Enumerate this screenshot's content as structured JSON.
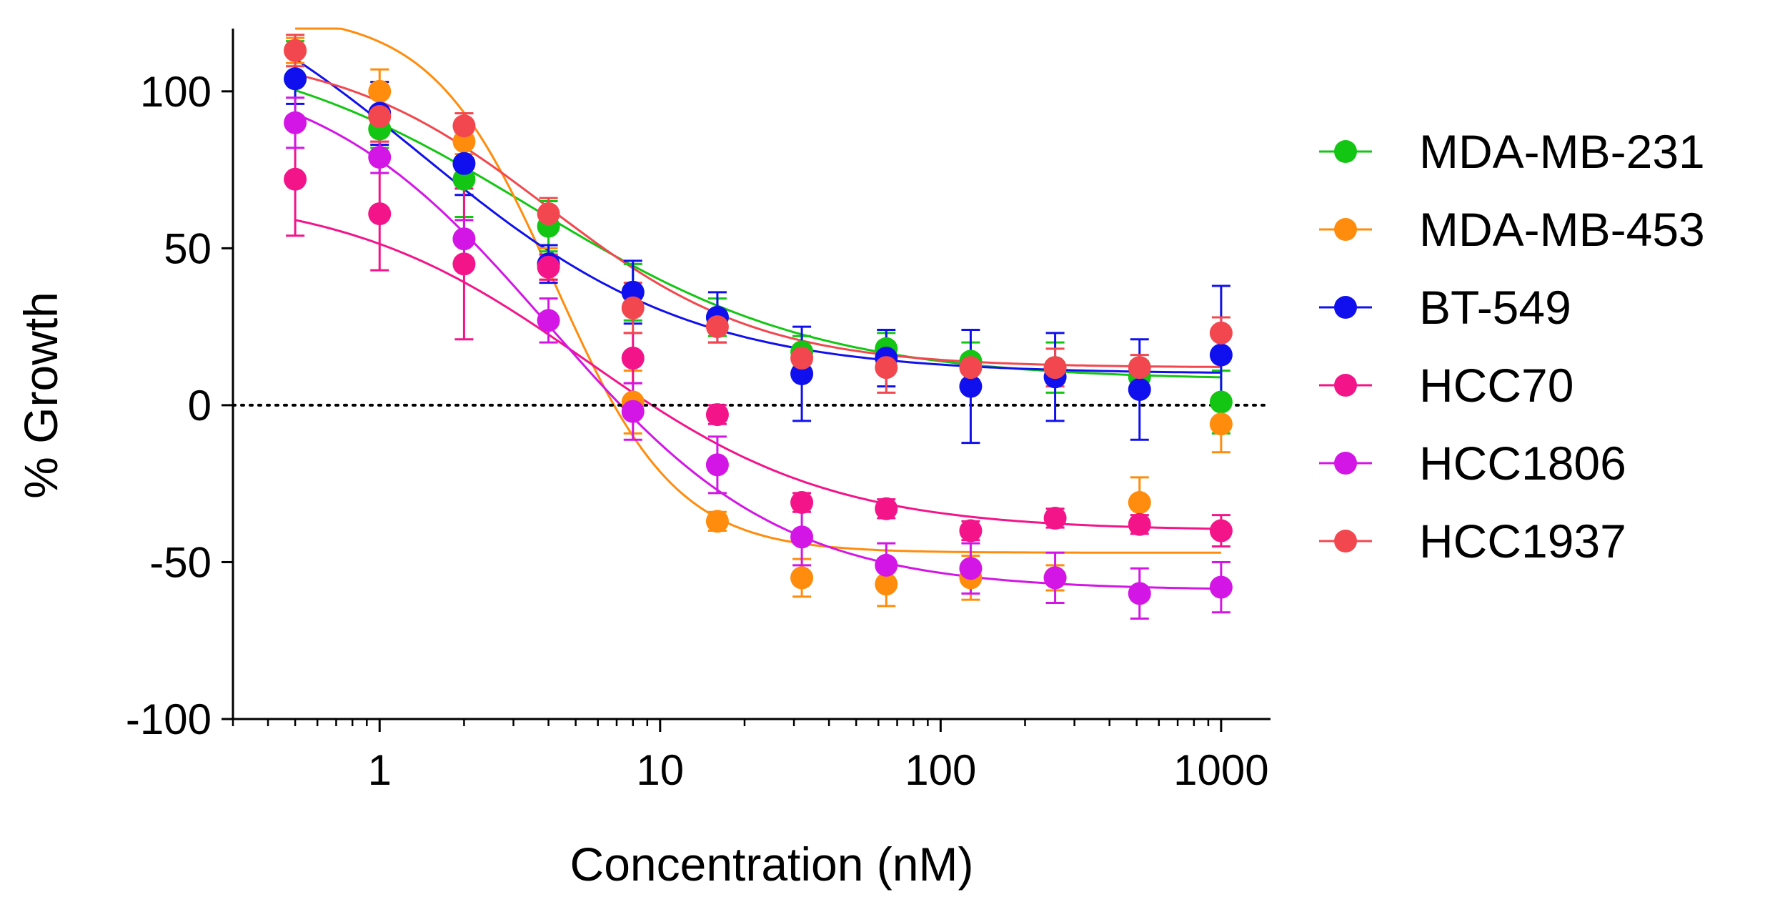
{
  "chart_data": {
    "type": "scatter",
    "title": "",
    "xlabel": "Concentration (nM)",
    "ylabel": "% Growth",
    "xscale": "log",
    "xlim": [
      0.3,
      1500
    ],
    "ylim": [
      -100,
      120
    ],
    "x_ticks": [
      1,
      10,
      100,
      1000
    ],
    "x_tick_labels": [
      "1",
      "10",
      "100",
      "1000"
    ],
    "y_ticks": [
      100,
      50,
      0,
      -50,
      -100
    ],
    "y_tick_labels": [
      "100",
      "50",
      "0",
      "-50",
      "-100"
    ],
    "reference_line": {
      "y": 0,
      "style": "dotted"
    },
    "legend_position": "right",
    "x": [
      0.5,
      1,
      2,
      4,
      8,
      16,
      32,
      64,
      128,
      256,
      512,
      1000
    ],
    "series": [
      {
        "name": "MDA-MB-231",
        "color": "#13c613",
        "values": [
          104,
          88,
          72,
          57,
          36,
          28,
          17,
          18,
          14,
          12,
          9,
          1
        ],
        "errors": [
          12,
          6,
          12,
          8,
          9,
          6,
          5,
          5,
          6,
          8,
          5,
          10
        ],
        "fit": {
          "top": 118,
          "bottom": 8,
          "ec50": 3.5,
          "hill": 0.85
        }
      },
      {
        "name": "MDA-MB-453",
        "color": "#ff8c0c",
        "values": [
          113,
          100,
          84,
          45,
          1,
          -37,
          -55,
          -57,
          -55,
          -55,
          -31,
          -6
        ],
        "errors": [
          4,
          7,
          4,
          5,
          10,
          3,
          6,
          7,
          7,
          4,
          8,
          9
        ],
        "fit": {
          "top": 125,
          "bottom": -47,
          "ec50": 4.2,
          "hill": 2.0
        }
      },
      {
        "name": "BT-549",
        "color": "#1010ee",
        "values": [
          104,
          93,
          77,
          45,
          36,
          28,
          10,
          15,
          6,
          9,
          5,
          16
        ],
        "errors": [
          8,
          10,
          10,
          6,
          10,
          8,
          15,
          9,
          18,
          14,
          16,
          22
        ],
        "fit": {
          "top": 150,
          "bottom": 10,
          "ec50": 1.4,
          "hill": 0.9
        }
      },
      {
        "name": "HCC70",
        "color": "#f4148a",
        "values": [
          72,
          61,
          45,
          44,
          15,
          -3,
          -31,
          -33,
          -40,
          -36,
          -38,
          -40
        ],
        "errors": [
          18,
          18,
          24,
          4,
          8,
          3,
          3,
          3,
          3,
          3,
          3,
          5
        ],
        "fit": {
          "top": 68,
          "bottom": -40,
          "ec50": 5.5,
          "hill": 1.0
        }
      },
      {
        "name": "HCC1806",
        "color": "#d316e6",
        "values": [
          90,
          79,
          53,
          27,
          -2,
          -19,
          -42,
          -51,
          -52,
          -55,
          -60,
          -58
        ],
        "errors": [
          8,
          5,
          6,
          7,
          9,
          9,
          9,
          7,
          8,
          8,
          8,
          8
        ],
        "fit": {
          "top": 110,
          "bottom": -59,
          "ec50": 4.0,
          "hill": 1.05
        }
      },
      {
        "name": "HCC1937",
        "color": "#f2474e",
        "values": [
          113,
          92,
          89,
          61,
          31,
          25,
          15,
          12,
          12,
          12,
          12,
          23
        ],
        "errors": [
          5,
          8,
          4,
          5,
          8,
          5,
          4,
          8,
          4,
          6,
          4,
          5
        ],
        "fit": {
          "top": 114,
          "bottom": 12,
          "ec50": 4.0,
          "hill": 1.15
        }
      }
    ]
  }
}
